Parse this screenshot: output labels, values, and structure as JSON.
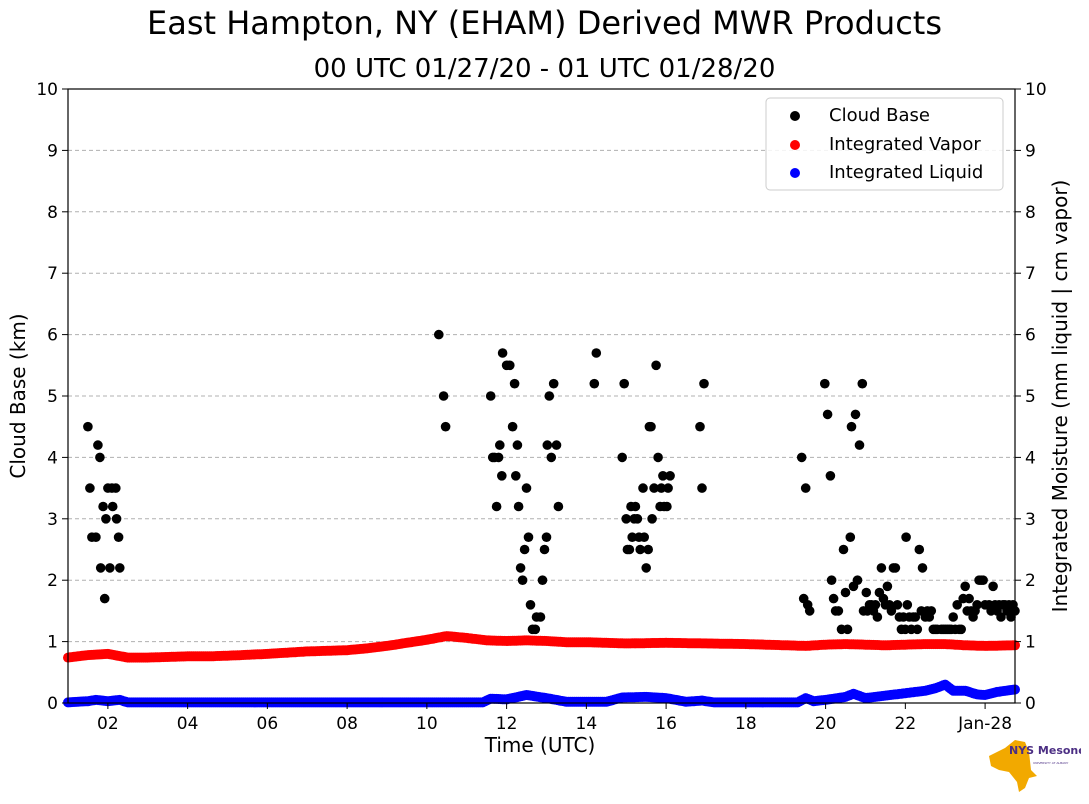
{
  "title": "East Hampton, NY (EHAM) Derived MWR Products",
  "subtitle": "00 UTC 01/27/20 - 01 UTC 01/28/20",
  "logo": {
    "brand": "NYS Mesonet",
    "sub": "UNIVERSITY AT ALBANY"
  },
  "colors": {
    "cloud_base": "#000000",
    "vapor": "#ff0000",
    "liquid": "#0000ff"
  },
  "chart_data": {
    "type": "scatter",
    "title": "East Hampton, NY (EHAM) Derived MWR Products",
    "subtitle": "00 UTC 01/27/20 - 01 UTC 01/28/20",
    "xlabel": "Time (UTC)",
    "ylabel": "Cloud Base (km)",
    "y2label": "Integrated Moisture (mm liquid | cm vapor)",
    "xlim": [
      1.0,
      24.75
    ],
    "ylim": [
      0,
      10
    ],
    "y2lim": [
      0,
      10
    ],
    "grid": "horizontal dashed",
    "legend_position": "top-right",
    "x_ticks": [
      {
        "x": 2,
        "label": "02"
      },
      {
        "x": 4,
        "label": "04"
      },
      {
        "x": 6,
        "label": "06"
      },
      {
        "x": 8,
        "label": "08"
      },
      {
        "x": 10,
        "label": "10"
      },
      {
        "x": 12,
        "label": "12"
      },
      {
        "x": 14,
        "label": "14"
      },
      {
        "x": 16,
        "label": "16"
      },
      {
        "x": 18,
        "label": "18"
      },
      {
        "x": 20,
        "label": "20"
      },
      {
        "x": 22,
        "label": "22"
      },
      {
        "x": 24,
        "label": "Jan-28"
      }
    ],
    "y_ticks": [
      "0",
      "1",
      "2",
      "3",
      "4",
      "5",
      "6",
      "7",
      "8",
      "9",
      "10"
    ],
    "series": [
      {
        "name": "Cloud Base",
        "points": [
          [
            1.5,
            4.5
          ],
          [
            1.55,
            3.5
          ],
          [
            1.6,
            2.7
          ],
          [
            1.7,
            2.7
          ],
          [
            1.75,
            4.2
          ],
          [
            1.8,
            4.0
          ],
          [
            1.82,
            2.2
          ],
          [
            1.88,
            3.2
          ],
          [
            1.92,
            1.7
          ],
          [
            1.95,
            3.0
          ],
          [
            2.0,
            3.5
          ],
          [
            2.05,
            2.2
          ],
          [
            2.1,
            3.5
          ],
          [
            2.12,
            3.2
          ],
          [
            2.2,
            3.5
          ],
          [
            2.22,
            3.0
          ],
          [
            2.27,
            2.7
          ],
          [
            2.3,
            2.2
          ],
          [
            10.3,
            6.0
          ],
          [
            10.42,
            5.0
          ],
          [
            10.47,
            4.5
          ],
          [
            11.6,
            5.0
          ],
          [
            11.65,
            4.0
          ],
          [
            11.7,
            4.0
          ],
          [
            11.75,
            3.2
          ],
          [
            11.8,
            4.0
          ],
          [
            11.83,
            4.2
          ],
          [
            11.88,
            3.7
          ],
          [
            11.9,
            5.7
          ],
          [
            12.0,
            5.5
          ],
          [
            12.08,
            5.5
          ],
          [
            12.15,
            4.5
          ],
          [
            12.2,
            5.2
          ],
          [
            12.23,
            3.7
          ],
          [
            12.27,
            4.2
          ],
          [
            12.3,
            3.2
          ],
          [
            12.35,
            2.2
          ],
          [
            12.4,
            2.0
          ],
          [
            12.45,
            2.5
          ],
          [
            12.5,
            3.5
          ],
          [
            12.55,
            2.7
          ],
          [
            12.6,
            1.6
          ],
          [
            12.65,
            1.2
          ],
          [
            12.72,
            1.2
          ],
          [
            12.75,
            1.4
          ],
          [
            12.85,
            1.4
          ],
          [
            12.9,
            2.0
          ],
          [
            12.95,
            2.5
          ],
          [
            13.0,
            2.7
          ],
          [
            13.02,
            4.2
          ],
          [
            13.07,
            5.0
          ],
          [
            13.12,
            4.0
          ],
          [
            13.18,
            5.2
          ],
          [
            13.25,
            4.2
          ],
          [
            13.3,
            3.2
          ],
          [
            14.2,
            5.2
          ],
          [
            14.25,
            5.7
          ],
          [
            14.9,
            4.0
          ],
          [
            14.95,
            5.2
          ],
          [
            15.0,
            3.0
          ],
          [
            15.03,
            2.5
          ],
          [
            15.08,
            2.5
          ],
          [
            15.12,
            3.2
          ],
          [
            15.15,
            2.7
          ],
          [
            15.2,
            3.0
          ],
          [
            15.23,
            3.2
          ],
          [
            15.28,
            3.0
          ],
          [
            15.32,
            2.7
          ],
          [
            15.35,
            2.5
          ],
          [
            15.42,
            3.5
          ],
          [
            15.45,
            2.7
          ],
          [
            15.5,
            2.2
          ],
          [
            15.55,
            2.5
          ],
          [
            15.58,
            4.5
          ],
          [
            15.62,
            4.5
          ],
          [
            15.65,
            3.0
          ],
          [
            15.7,
            3.5
          ],
          [
            15.75,
            5.5
          ],
          [
            15.8,
            4.0
          ],
          [
            15.85,
            3.2
          ],
          [
            15.88,
            3.5
          ],
          [
            15.92,
            3.7
          ],
          [
            15.95,
            3.2
          ],
          [
            16.02,
            3.2
          ],
          [
            16.05,
            3.5
          ],
          [
            16.1,
            3.7
          ],
          [
            16.85,
            4.5
          ],
          [
            16.9,
            3.5
          ],
          [
            16.95,
            5.2
          ],
          [
            19.4,
            4.0
          ],
          [
            19.45,
            1.7
          ],
          [
            19.5,
            3.5
          ],
          [
            19.55,
            1.6
          ],
          [
            19.6,
            1.5
          ],
          [
            19.98,
            5.2
          ],
          [
            20.05,
            4.7
          ],
          [
            20.12,
            3.7
          ],
          [
            20.15,
            2.0
          ],
          [
            20.2,
            1.7
          ],
          [
            20.25,
            1.5
          ],
          [
            20.32,
            1.5
          ],
          [
            20.4,
            1.2
          ],
          [
            20.45,
            2.5
          ],
          [
            20.5,
            1.8
          ],
          [
            20.55,
            1.2
          ],
          [
            20.62,
            2.7
          ],
          [
            20.65,
            4.5
          ],
          [
            20.7,
            1.9
          ],
          [
            20.75,
            4.7
          ],
          [
            20.8,
            2.0
          ],
          [
            20.85,
            4.2
          ],
          [
            20.92,
            5.2
          ],
          [
            20.95,
            1.5
          ],
          [
            21.02,
            1.8
          ],
          [
            21.05,
            1.5
          ],
          [
            21.1,
            1.6
          ],
          [
            21.15,
            1.6
          ],
          [
            21.2,
            1.5
          ],
          [
            21.25,
            1.6
          ],
          [
            21.3,
            1.4
          ],
          [
            21.35,
            1.8
          ],
          [
            21.4,
            2.2
          ],
          [
            21.45,
            1.7
          ],
          [
            21.5,
            1.6
          ],
          [
            21.55,
            1.9
          ],
          [
            21.6,
            1.6
          ],
          [
            21.65,
            1.5
          ],
          [
            21.7,
            2.2
          ],
          [
            21.75,
            2.2
          ],
          [
            21.8,
            1.6
          ],
          [
            21.85,
            1.4
          ],
          [
            21.9,
            1.2
          ],
          [
            21.95,
            1.4
          ],
          [
            22.0,
            1.2
          ],
          [
            22.02,
            2.7
          ],
          [
            22.05,
            1.6
          ],
          [
            22.1,
            1.4
          ],
          [
            22.15,
            1.2
          ],
          [
            22.2,
            1.4
          ],
          [
            22.25,
            1.4
          ],
          [
            22.3,
            1.2
          ],
          [
            22.35,
            2.5
          ],
          [
            22.4,
            1.5
          ],
          [
            22.43,
            2.2
          ],
          [
            22.5,
            1.4
          ],
          [
            22.55,
            1.5
          ],
          [
            22.6,
            1.4
          ],
          [
            22.65,
            1.5
          ],
          [
            22.7,
            1.2
          ],
          [
            22.75,
            1.2
          ],
          [
            22.8,
            1.2
          ],
          [
            22.9,
            1.2
          ],
          [
            22.95,
            1.2
          ],
          [
            23.0,
            1.2
          ],
          [
            23.05,
            1.2
          ],
          [
            23.1,
            1.2
          ],
          [
            23.15,
            1.2
          ],
          [
            23.2,
            1.4
          ],
          [
            23.25,
            1.2
          ],
          [
            23.3,
            1.6
          ],
          [
            23.35,
            1.2
          ],
          [
            23.4,
            1.2
          ],
          [
            23.45,
            1.7
          ],
          [
            23.5,
            1.9
          ],
          [
            23.55,
            1.5
          ],
          [
            23.6,
            1.7
          ],
          [
            23.65,
            1.5
          ],
          [
            23.7,
            1.4
          ],
          [
            23.75,
            1.5
          ],
          [
            23.8,
            1.6
          ],
          [
            23.85,
            2.0
          ],
          [
            23.9,
            2.0
          ],
          [
            23.95,
            2.0
          ],
          [
            24.0,
            1.6
          ],
          [
            24.1,
            1.6
          ],
          [
            24.15,
            1.5
          ],
          [
            24.2,
            1.9
          ],
          [
            24.25,
            1.6
          ],
          [
            24.3,
            1.5
          ],
          [
            24.35,
            1.6
          ],
          [
            24.4,
            1.4
          ],
          [
            24.45,
            1.6
          ],
          [
            24.5,
            1.6
          ],
          [
            24.55,
            1.5
          ],
          [
            24.6,
            1.6
          ],
          [
            24.65,
            1.4
          ],
          [
            24.7,
            1.6
          ],
          [
            24.75,
            1.5
          ]
        ]
      },
      {
        "name": "Integrated Vapor",
        "knots": [
          [
            1.0,
            0.74
          ],
          [
            1.5,
            0.78
          ],
          [
            2.0,
            0.8
          ],
          [
            2.5,
            0.74
          ],
          [
            3.0,
            0.74
          ],
          [
            3.5,
            0.75
          ],
          [
            4.0,
            0.76
          ],
          [
            4.5,
            0.76
          ],
          [
            5.0,
            0.77
          ],
          [
            6.0,
            0.8
          ],
          [
            7.0,
            0.84
          ],
          [
            8.0,
            0.86
          ],
          [
            8.5,
            0.89
          ],
          [
            9.0,
            0.93
          ],
          [
            9.5,
            0.98
          ],
          [
            10.0,
            1.03
          ],
          [
            10.5,
            1.09
          ],
          [
            11.0,
            1.06
          ],
          [
            11.5,
            1.02
          ],
          [
            12.0,
            1.01
          ],
          [
            12.5,
            1.02
          ],
          [
            13.0,
            1.01
          ],
          [
            13.5,
            0.99
          ],
          [
            14.0,
            0.99
          ],
          [
            14.5,
            0.98
          ],
          [
            15.0,
            0.97
          ],
          [
            16.0,
            0.98
          ],
          [
            17.0,
            0.97
          ],
          [
            18.0,
            0.96
          ],
          [
            19.0,
            0.94
          ],
          [
            19.5,
            0.93
          ],
          [
            20.0,
            0.95
          ],
          [
            20.5,
            0.96
          ],
          [
            21.0,
            0.95
          ],
          [
            21.5,
            0.94
          ],
          [
            22.0,
            0.95
          ],
          [
            22.5,
            0.96
          ],
          [
            23.0,
            0.96
          ],
          [
            23.5,
            0.94
          ],
          [
            24.0,
            0.93
          ],
          [
            24.75,
            0.94
          ]
        ]
      },
      {
        "name": "Integrated Liquid",
        "knots": [
          [
            1.0,
            0.01
          ],
          [
            1.5,
            0.03
          ],
          [
            1.7,
            0.05
          ],
          [
            2.0,
            0.03
          ],
          [
            2.3,
            0.05
          ],
          [
            2.5,
            0.01
          ],
          [
            11.4,
            0.01
          ],
          [
            11.6,
            0.07
          ],
          [
            12.0,
            0.06
          ],
          [
            12.5,
            0.13
          ],
          [
            13.0,
            0.08
          ],
          [
            13.5,
            0.02
          ],
          [
            14.5,
            0.02
          ],
          [
            14.9,
            0.09
          ],
          [
            15.5,
            0.1
          ],
          [
            16.0,
            0.08
          ],
          [
            16.5,
            0.02
          ],
          [
            16.9,
            0.04
          ],
          [
            17.2,
            0.01
          ],
          [
            19.3,
            0.01
          ],
          [
            19.5,
            0.08
          ],
          [
            19.7,
            0.03
          ],
          [
            20.0,
            0.05
          ],
          [
            20.5,
            0.1
          ],
          [
            20.7,
            0.15
          ],
          [
            21.0,
            0.08
          ],
          [
            21.5,
            0.12
          ],
          [
            22.0,
            0.16
          ],
          [
            22.5,
            0.2
          ],
          [
            22.8,
            0.25
          ],
          [
            23.0,
            0.3
          ],
          [
            23.2,
            0.2
          ],
          [
            23.5,
            0.2
          ],
          [
            23.8,
            0.14
          ],
          [
            24.0,
            0.13
          ],
          [
            24.3,
            0.18
          ],
          [
            24.75,
            0.22
          ]
        ]
      }
    ]
  }
}
